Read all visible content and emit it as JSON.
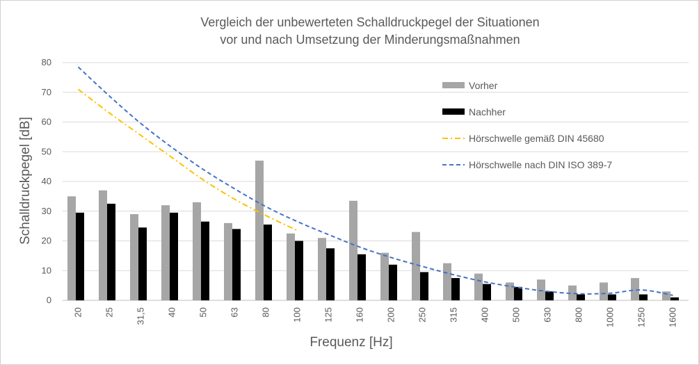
{
  "chart_data": {
    "type": "bar",
    "title_lines": [
      "Vergleich der unbewerteten Schalldruckpegel der Situationen",
      "vor und nach Umsetzung der Minderungsmaßnahmen"
    ],
    "xlabel": "Frequenz [Hz]",
    "ylabel": "Schalldruckpegel [dB]",
    "ylim": [
      0,
      80
    ],
    "yticks": [
      0,
      10,
      20,
      30,
      40,
      50,
      60,
      70,
      80
    ],
    "grid": true,
    "legend_position": "top-right",
    "categories": [
      "20",
      "25",
      "31,5",
      "40",
      "50",
      "63",
      "80",
      "100",
      "125",
      "160",
      "200",
      "250",
      "315",
      "400",
      "500",
      "630",
      "800",
      "1000",
      "1250",
      "1600"
    ],
    "series": [
      {
        "name": "Vorher",
        "kind": "bar",
        "color": "#a6a6a6",
        "values": [
          35,
          37,
          29,
          32,
          33,
          26,
          47,
          22.5,
          21,
          33.5,
          16,
          23,
          12.5,
          9,
          6,
          7,
          5,
          6,
          7.5,
          3
        ]
      },
      {
        "name": "Nachher",
        "kind": "bar",
        "color": "#000000",
        "values": [
          29.5,
          32.5,
          24.5,
          29.5,
          26.5,
          24,
          25.5,
          20,
          17.5,
          15.5,
          12,
          9.5,
          7.5,
          5.5,
          4.5,
          3,
          2,
          2,
          2,
          1
        ]
      },
      {
        "name": "Hörschwelle gemäß DIN 45680",
        "kind": "line",
        "style": "dash-dot",
        "color": "#ffc000",
        "values": [
          71,
          63,
          55.5,
          48,
          40.5,
          34,
          28.5,
          23.5,
          null,
          null,
          null,
          null,
          null,
          null,
          null,
          null,
          null,
          null,
          null,
          null
        ]
      },
      {
        "name": "Hörschwelle nach DIN ISO 389-7",
        "kind": "line",
        "style": "dash",
        "color": "#4472c4",
        "values": [
          78.5,
          68.7,
          59.5,
          51.4,
          44,
          37.5,
          31.5,
          26.5,
          22.1,
          17.9,
          14.4,
          11.4,
          8.6,
          6.2,
          4.4,
          3.0,
          2.2,
          2.4,
          3.5,
          1.7
        ]
      }
    ]
  }
}
